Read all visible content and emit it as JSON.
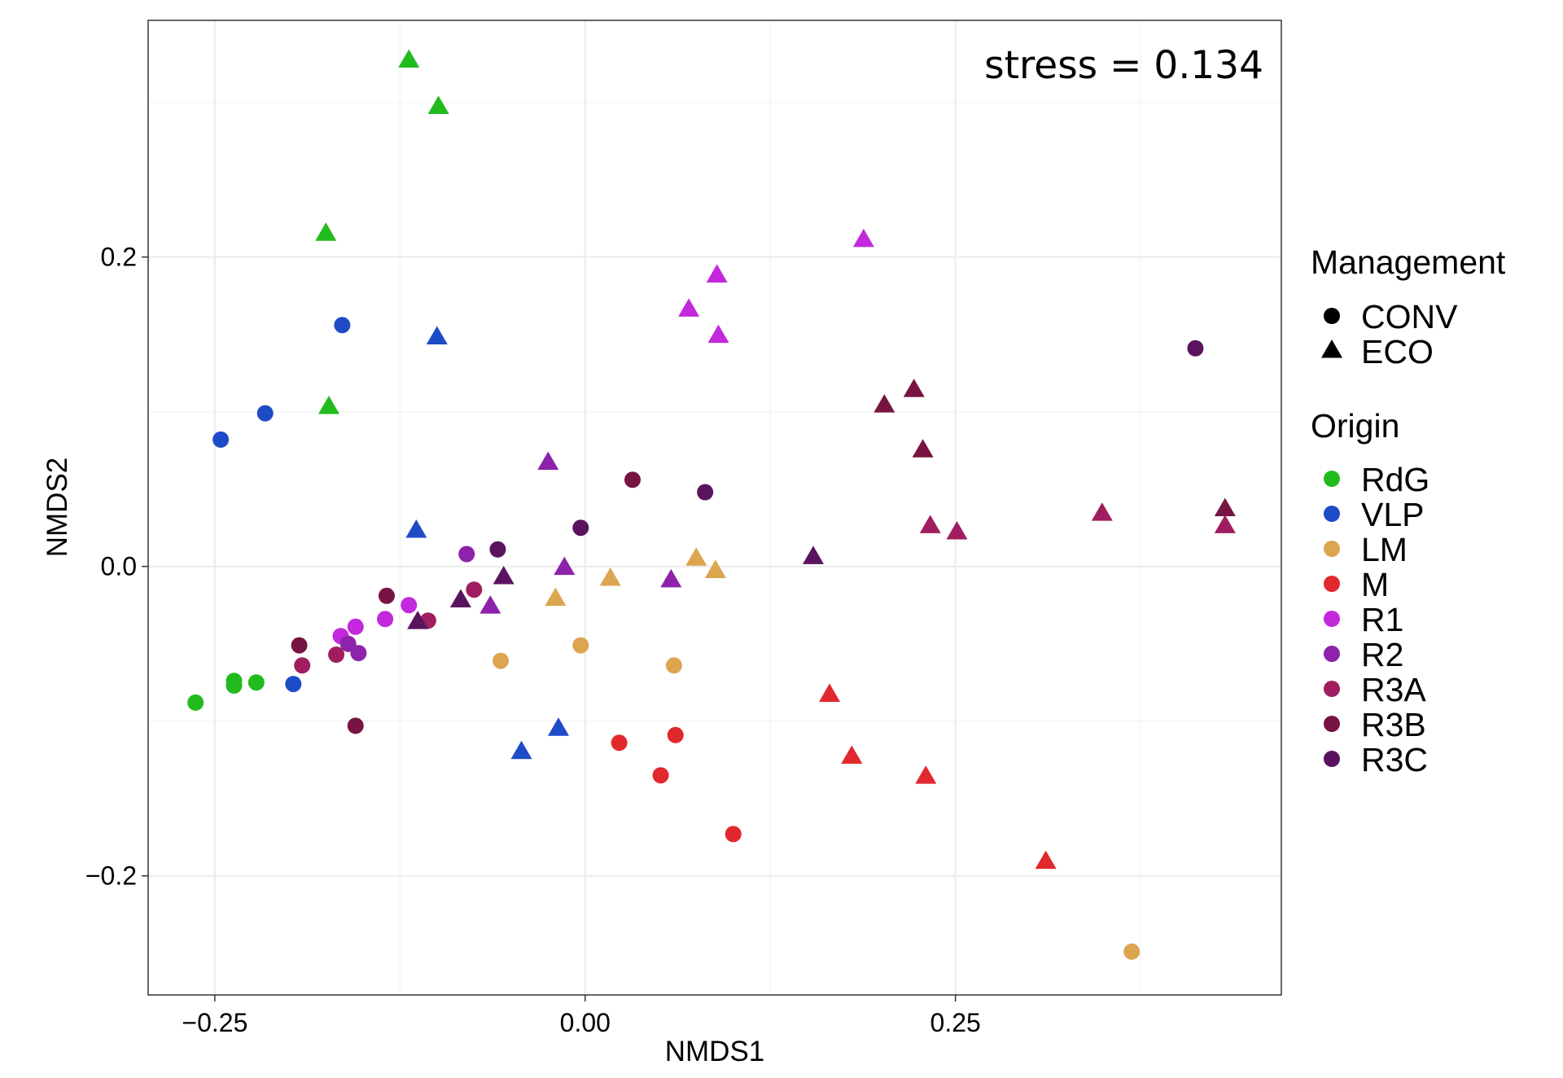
{
  "chart_data": {
    "type": "scatter",
    "xlabel": "NMDS1",
    "ylabel": "NMDS2",
    "xlim": [
      -0.295,
      0.47
    ],
    "ylim": [
      -0.277,
      0.353
    ],
    "x_ticks": [
      -0.25,
      0,
      0.25
    ],
    "x_tick_labels": [
      "−0.25",
      "0.00",
      "0.25"
    ],
    "y_ticks": [
      -0.2,
      0,
      0.2
    ],
    "y_tick_labels": [
      "−0.2",
      "0.0",
      "0.2"
    ],
    "grid": true,
    "annotation": "stress = 0.134",
    "legend_placement": "right",
    "legends": {
      "shape": {
        "title": "Management",
        "entries": [
          {
            "label": "CONV",
            "shape": "circle"
          },
          {
            "label": "ECO",
            "shape": "triangle"
          }
        ]
      },
      "color": {
        "title": "Origin",
        "entries": [
          {
            "label": "RdG",
            "color": "#22BB1E"
          },
          {
            "label": "VLP",
            "color": "#1E4BC8"
          },
          {
            "label": "LM",
            "color": "#DCA550"
          },
          {
            "label": "M",
            "color": "#E1282D"
          },
          {
            "label": "R1",
            "color": "#C328DC"
          },
          {
            "label": "R2",
            "color": "#8C23AA"
          },
          {
            "label": "R3A",
            "color": "#A01E5F"
          },
          {
            "label": "R3B",
            "color": "#781441"
          },
          {
            "label": "R3C",
            "color": "#5A145F"
          }
        ]
      }
    },
    "series": [
      {
        "origin": "RdG",
        "management": "CONV",
        "points": [
          [
            -0.263,
            -0.088
          ],
          [
            -0.237,
            -0.074
          ],
          [
            -0.237,
            -0.077
          ],
          [
            -0.222,
            -0.075
          ]
        ]
      },
      {
        "origin": "RdG",
        "management": "ECO",
        "points": [
          [
            -0.119,
            0.327
          ],
          [
            -0.099,
            0.297
          ],
          [
            -0.175,
            0.215
          ],
          [
            -0.173,
            0.103
          ]
        ]
      },
      {
        "origin": "VLP",
        "management": "CONV",
        "points": [
          [
            -0.164,
            0.156
          ],
          [
            -0.216,
            0.099
          ],
          [
            -0.246,
            0.082
          ],
          [
            -0.197,
            -0.076
          ]
        ]
      },
      {
        "origin": "VLP",
        "management": "ECO",
        "points": [
          [
            -0.1,
            0.148
          ],
          [
            -0.114,
            0.023
          ],
          [
            -0.018,
            -0.105
          ],
          [
            -0.043,
            -0.12
          ]
        ]
      },
      {
        "origin": "LM",
        "management": "CONV",
        "points": [
          [
            -0.057,
            -0.061
          ],
          [
            -0.003,
            -0.051
          ],
          [
            0.06,
            -0.064
          ],
          [
            0.369,
            -0.249
          ]
        ]
      },
      {
        "origin": "LM",
        "management": "ECO",
        "points": [
          [
            0.075,
            0.005
          ],
          [
            0.088,
            -0.003
          ],
          [
            0.017,
            -0.008
          ],
          [
            -0.02,
            -0.021
          ]
        ]
      },
      {
        "origin": "M",
        "management": "CONV",
        "points": [
          [
            0.023,
            -0.114
          ],
          [
            0.061,
            -0.109
          ],
          [
            0.051,
            -0.135
          ],
          [
            0.1,
            -0.173
          ]
        ]
      },
      {
        "origin": "M",
        "management": "ECO",
        "points": [
          [
            0.165,
            -0.083
          ],
          [
            0.18,
            -0.123
          ],
          [
            0.23,
            -0.136
          ],
          [
            0.311,
            -0.191
          ]
        ]
      },
      {
        "origin": "R1",
        "management": "CONV",
        "points": [
          [
            -0.119,
            -0.025
          ],
          [
            -0.135,
            -0.034
          ],
          [
            -0.155,
            -0.039
          ],
          [
            -0.165,
            -0.045
          ]
        ]
      },
      {
        "origin": "R1",
        "management": "ECO",
        "points": [
          [
            0.188,
            0.211
          ],
          [
            0.089,
            0.188
          ],
          [
            0.07,
            0.166
          ],
          [
            0.09,
            0.149
          ]
        ]
      },
      {
        "origin": "R2",
        "management": "CONV",
        "points": [
          [
            -0.08,
            0.008
          ],
          [
            -0.16,
            -0.05
          ],
          [
            -0.153,
            -0.056
          ]
        ]
      },
      {
        "origin": "R2",
        "management": "ECO",
        "points": [
          [
            -0.025,
            0.067
          ],
          [
            -0.014,
            -0.001
          ],
          [
            0.058,
            -0.009
          ],
          [
            -0.064,
            -0.026
          ]
        ]
      },
      {
        "origin": "R3A",
        "management": "CONV",
        "points": [
          [
            -0.075,
            -0.015
          ],
          [
            -0.106,
            -0.035
          ],
          [
            -0.168,
            -0.057
          ],
          [
            -0.191,
            -0.064
          ]
        ]
      },
      {
        "origin": "R3A",
        "management": "ECO",
        "points": [
          [
            0.233,
            0.026
          ],
          [
            0.251,
            0.022
          ],
          [
            0.349,
            0.034
          ],
          [
            0.432,
            0.026
          ]
        ]
      },
      {
        "origin": "R3B",
        "management": "CONV",
        "points": [
          [
            0.032,
            0.056
          ],
          [
            -0.134,
            -0.019
          ],
          [
            -0.193,
            -0.051
          ],
          [
            -0.155,
            -0.103
          ]
        ]
      },
      {
        "origin": "R3B",
        "management": "ECO",
        "points": [
          [
            0.222,
            0.114
          ],
          [
            0.202,
            0.104
          ],
          [
            0.228,
            0.075
          ],
          [
            0.432,
            0.037
          ]
        ]
      },
      {
        "origin": "R3C",
        "management": "CONV",
        "points": [
          [
            0.412,
            0.141
          ],
          [
            0.081,
            0.048
          ],
          [
            -0.003,
            0.025
          ],
          [
            -0.059,
            0.011
          ]
        ]
      },
      {
        "origin": "R3C",
        "management": "ECO",
        "points": [
          [
            0.154,
            0.006
          ],
          [
            -0.055,
            -0.007
          ],
          [
            -0.084,
            -0.022
          ],
          [
            -0.113,
            -0.036
          ]
        ]
      }
    ]
  }
}
